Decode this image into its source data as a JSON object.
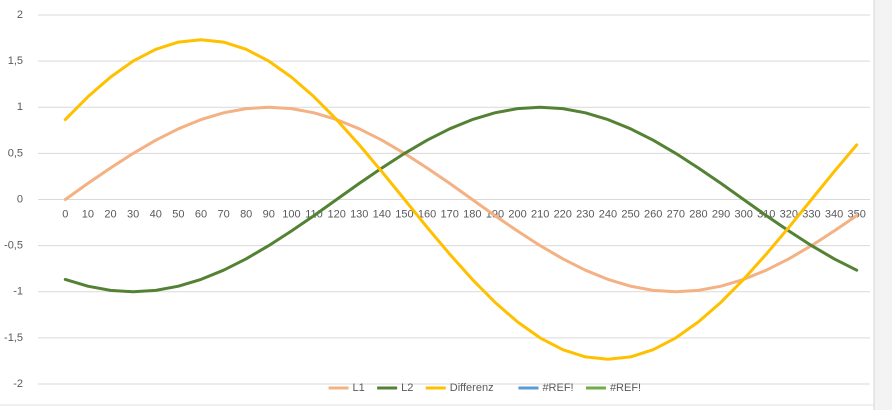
{
  "chart_data": {
    "type": "line",
    "categories": [
      "0",
      "10",
      "20",
      "30",
      "40",
      "50",
      "60",
      "70",
      "80",
      "90",
      "100",
      "110",
      "120",
      "130",
      "140",
      "150",
      "160",
      "170",
      "180",
      "190",
      "200",
      "210",
      "220",
      "230",
      "240",
      "250",
      "260",
      "270",
      "280",
      "290",
      "300",
      "310",
      "320",
      "330",
      "340",
      "350"
    ],
    "series": [
      {
        "name": "L1",
        "color": "#f4b183",
        "values": [
          0,
          0.174,
          0.342,
          0.5,
          0.643,
          0.766,
          0.866,
          0.94,
          0.985,
          1,
          0.985,
          0.94,
          0.866,
          0.766,
          0.643,
          0.5,
          0.342,
          0.174,
          0,
          -0.174,
          -0.342,
          -0.5,
          -0.643,
          -0.766,
          -0.866,
          -0.94,
          -0.985,
          -1,
          -0.985,
          -0.94,
          -0.866,
          -0.766,
          -0.643,
          -0.5,
          -0.342,
          -0.174
        ]
      },
      {
        "name": "L2",
        "color": "#548235",
        "values": [
          -0.866,
          -0.94,
          -0.985,
          -1,
          -0.985,
          -0.94,
          -0.866,
          -0.766,
          -0.643,
          -0.5,
          -0.342,
          -0.174,
          0,
          0.174,
          0.342,
          0.5,
          0.643,
          0.766,
          0.866,
          0.94,
          0.985,
          1,
          0.985,
          0.94,
          0.866,
          0.766,
          0.643,
          0.5,
          0.342,
          0.174,
          0,
          -0.174,
          -0.342,
          -0.5,
          -0.643,
          -0.766
        ]
      },
      {
        "name": "Differenz",
        "color": "#ffc000",
        "values": [
          0.866,
          1.113,
          1.327,
          1.5,
          1.628,
          1.706,
          1.732,
          1.706,
          1.628,
          1.5,
          1.327,
          1.113,
          0.866,
          0.592,
          0.301,
          0,
          -0.301,
          -0.592,
          -0.866,
          -1.113,
          -1.327,
          -1.5,
          -1.628,
          -1.706,
          -1.732,
          -1.706,
          -1.628,
          -1.5,
          -1.327,
          -1.113,
          -0.866,
          -0.592,
          -0.301,
          0,
          0.301,
          0.592
        ]
      },
      {
        "name": "#REF!",
        "color": "#5b9bd5",
        "values": [
          null,
          null,
          null,
          null,
          null,
          null,
          null,
          null,
          null,
          null,
          null,
          null,
          null,
          null,
          null,
          null,
          null,
          null,
          null,
          null,
          null,
          null,
          null,
          null,
          null,
          null,
          null,
          null,
          null,
          null,
          null,
          null,
          null,
          null,
          null,
          null
        ]
      },
      {
        "name": "#REF!",
        "color": "#70ad47",
        "values": [
          null,
          null,
          null,
          null,
          null,
          null,
          null,
          null,
          null,
          null,
          null,
          null,
          null,
          null,
          null,
          null,
          null,
          null,
          null,
          null,
          null,
          null,
          null,
          null,
          null,
          null,
          null,
          null,
          null,
          null,
          null,
          null,
          null,
          null,
          null,
          null
        ]
      }
    ],
    "ylim": [
      -2,
      2
    ],
    "yticks": [
      -2,
      {
        "value": -1.5,
        "label": "-1,5"
      },
      -1,
      {
        "value": -0.5,
        "label": "-0,5"
      },
      0,
      {
        "value": 0.5,
        "label": "0,5"
      },
      1,
      {
        "value": 1.5,
        "label": "1,5"
      },
      2
    ],
    "grid": true,
    "legend": "bottom"
  }
}
